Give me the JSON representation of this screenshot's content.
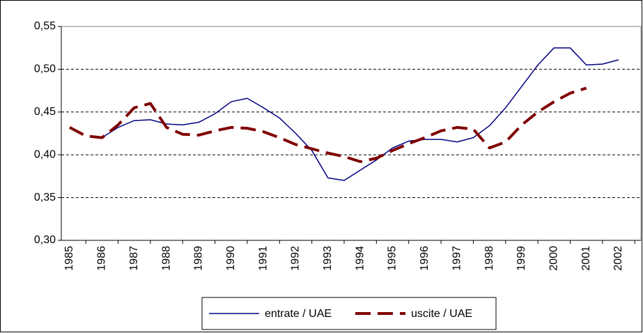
{
  "chart_data": {
    "type": "line",
    "categories": [
      "1985",
      null,
      "1986",
      null,
      "1987",
      null,
      "1988",
      null,
      "1989",
      null,
      "1990",
      null,
      "1991",
      null,
      "1992",
      null,
      "1993",
      null,
      "1994",
      null,
      "1995",
      null,
      "1996",
      null,
      "1997",
      null,
      "1998",
      null,
      "1999",
      null,
      "2000",
      null,
      "2001",
      null,
      "2002"
    ],
    "series": [
      {
        "name": "entrate / UAE",
        "color": "#000080",
        "dash": false,
        "values": [
          null,
          null,
          0.42,
          0.432,
          0.44,
          0.441,
          0.436,
          0.435,
          0.438,
          0.448,
          0.462,
          0.466,
          0.455,
          0.443,
          0.425,
          0.405,
          0.373,
          0.37,
          0.382,
          0.394,
          0.408,
          0.416,
          0.418,
          0.418,
          0.415,
          0.42,
          0.434,
          0.455,
          0.48,
          0.505,
          0.525,
          0.525,
          0.505,
          0.506,
          0.511
        ]
      },
      {
        "name": "uscite / UAE",
        "color": "#800000",
        "dash": true,
        "values": [
          0.432,
          0.422,
          0.42,
          0.435,
          0.455,
          0.46,
          0.432,
          0.424,
          0.423,
          0.428,
          0.432,
          0.431,
          0.427,
          0.42,
          0.412,
          0.407,
          0.402,
          0.398,
          0.392,
          0.396,
          0.405,
          0.413,
          0.42,
          0.428,
          0.432,
          0.43,
          0.408,
          0.415,
          0.435,
          0.45,
          0.462,
          0.472,
          0.478,
          null,
          null
        ]
      }
    ],
    "ylim": [
      0.3,
      0.55
    ],
    "yticks": [
      {
        "value": 0.3,
        "label": "0,30"
      },
      {
        "value": 0.35,
        "label": "0,35"
      },
      {
        "value": 0.4,
        "label": "0,40"
      },
      {
        "value": 0.45,
        "label": "0,45"
      },
      {
        "value": 0.5,
        "label": "0,50"
      },
      {
        "value": 0.55,
        "label": "0,55"
      }
    ],
    "grid": true,
    "legend": "bottom"
  }
}
